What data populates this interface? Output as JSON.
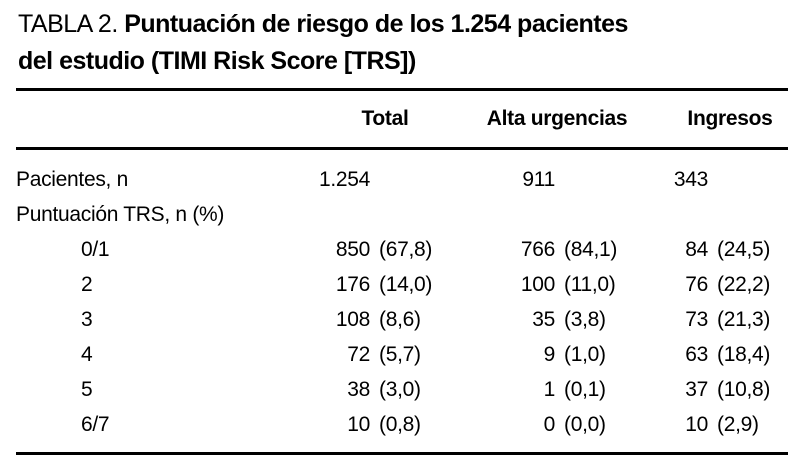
{
  "colors": {
    "background": "#ffffff",
    "text": "#000000",
    "rule": "#000000"
  },
  "title": {
    "prefix": "TABLA 2.",
    "bold_line1": "Puntuación de riesgo de los 1.254 pacientes",
    "bold_line2": "del estudio (TIMI Risk Score [TRS])"
  },
  "table": {
    "headers": {
      "total": "Total",
      "alta_urgencias": "Alta urgencias",
      "ingresos": "Ingresos"
    },
    "rows": [
      {
        "label": "Pacientes, n",
        "total": {
          "n": "1.254",
          "pct": ""
        },
        "alta": {
          "n": "911",
          "pct": ""
        },
        "ingresos": {
          "n": "343",
          "pct": ""
        }
      },
      {
        "label": "Puntuación TRS, n (%)",
        "total": {
          "n": "",
          "pct": ""
        },
        "alta": {
          "n": "",
          "pct": ""
        },
        "ingresos": {
          "n": "",
          "pct": ""
        }
      },
      {
        "label": "0/1",
        "total": {
          "n": "850",
          "pct": "(67,8)"
        },
        "alta": {
          "n": "766",
          "pct": "(84,1)"
        },
        "ingresos": {
          "n": "84",
          "pct": "(24,5)"
        }
      },
      {
        "label": "2",
        "total": {
          "n": "176",
          "pct": "(14,0)"
        },
        "alta": {
          "n": "100",
          "pct": "(11,0)"
        },
        "ingresos": {
          "n": "76",
          "pct": "(22,2)"
        }
      },
      {
        "label": "3",
        "total": {
          "n": "108",
          "pct": "(8,6)"
        },
        "alta": {
          "n": "35",
          "pct": "(3,8)"
        },
        "ingresos": {
          "n": "73",
          "pct": "(21,3)"
        }
      },
      {
        "label": "4",
        "total": {
          "n": "72",
          "pct": "(5,7)"
        },
        "alta": {
          "n": "9",
          "pct": "(1,0)"
        },
        "ingresos": {
          "n": "63",
          "pct": "(18,4)"
        }
      },
      {
        "label": "5",
        "total": {
          "n": "38",
          "pct": "(3,0)"
        },
        "alta": {
          "n": "1",
          "pct": "(0,1)"
        },
        "ingresos": {
          "n": "37",
          "pct": "(10,8)"
        }
      },
      {
        "label": "6/7",
        "total": {
          "n": "10",
          "pct": "(0,8)"
        },
        "alta": {
          "n": "0",
          "pct": "(0,0)"
        },
        "ingresos": {
          "n": "10",
          "pct": "(2,9)"
        }
      }
    ]
  }
}
